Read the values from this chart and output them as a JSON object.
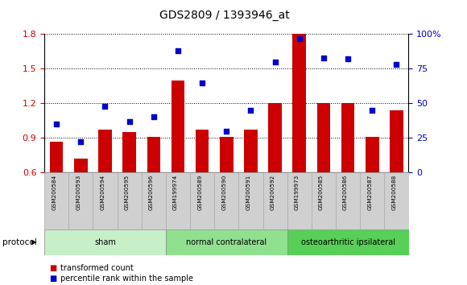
{
  "title": "GDS2809 / 1393946_at",
  "samples": [
    "GSM200584",
    "GSM200593",
    "GSM200594",
    "GSM200595",
    "GSM200596",
    "GSM199974",
    "GSM200589",
    "GSM200590",
    "GSM200591",
    "GSM200592",
    "GSM199973",
    "GSM200585",
    "GSM200586",
    "GSM200587",
    "GSM200588"
  ],
  "red_bars": [
    0.87,
    0.72,
    0.97,
    0.95,
    0.91,
    1.4,
    0.97,
    0.91,
    0.97,
    1.2,
    1.8,
    1.2,
    1.2,
    0.91,
    1.14
  ],
  "blue_dots_pct": [
    35,
    22,
    48,
    37,
    40,
    88,
    65,
    30,
    45,
    80,
    97,
    83,
    82,
    45,
    78
  ],
  "groups": [
    {
      "label": "sham",
      "start": 0,
      "end": 5,
      "color": "#c8f0c8"
    },
    {
      "label": "normal contralateral",
      "start": 5,
      "end": 10,
      "color": "#90e090"
    },
    {
      "label": "osteoarthritic ipsilateral",
      "start": 10,
      "end": 15,
      "color": "#58d058"
    }
  ],
  "ylim_left": [
    0.6,
    1.8
  ],
  "ylim_right": [
    0,
    100
  ],
  "yticks_left": [
    0.6,
    0.9,
    1.2,
    1.5,
    1.8
  ],
  "yticks_right": [
    0,
    25,
    50,
    75,
    100
  ],
  "ytick_labels_right": [
    "0",
    "25",
    "50",
    "75",
    "100%"
  ],
  "bar_color": "#cc0000",
  "dot_color": "#0000cc",
  "bar_width": 0.55,
  "protocol_label": "protocol",
  "legend_bar": "transformed count",
  "legend_dot": "percentile rank within the sample",
  "bg_color": "#ffffff",
  "tick_color_left": "#cc0000",
  "tick_color_right": "#0000cc",
  "label_box_color": "#d0d0d0",
  "label_box_border": "#aaaaaa"
}
